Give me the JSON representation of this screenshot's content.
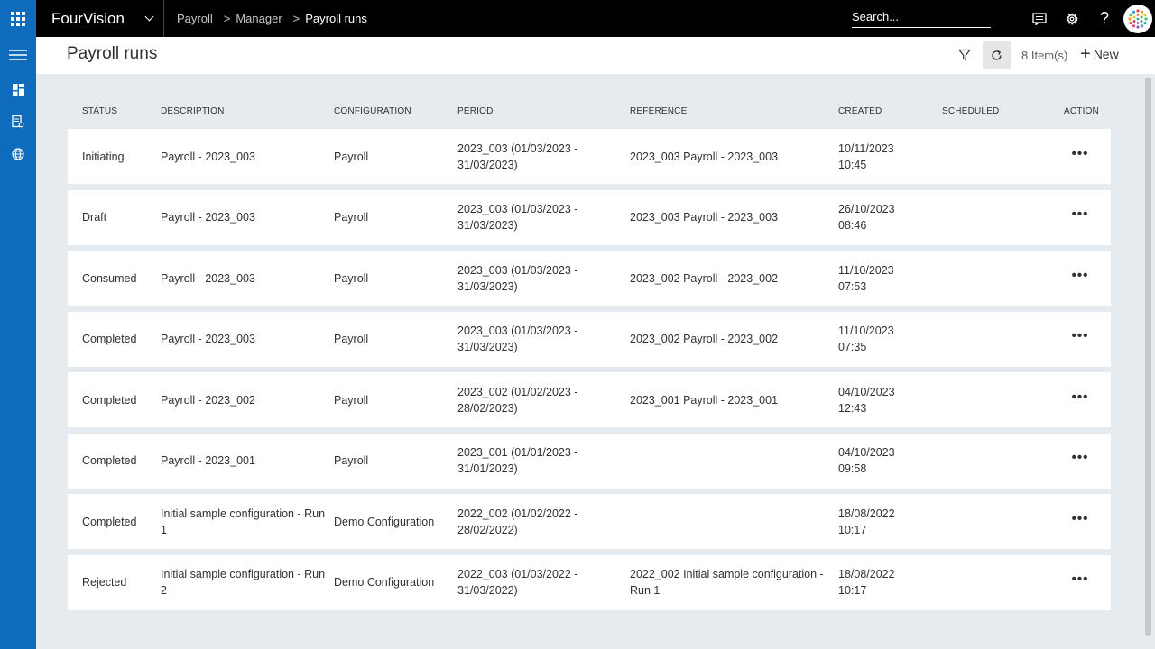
{
  "app": {
    "name": "FourVision",
    "breadcrumb": [
      "Payroll",
      "Manager",
      "Payroll runs"
    ],
    "search_placeholder": "Search..."
  },
  "page": {
    "title": "Payroll runs",
    "item_count": "8 Item(s)",
    "new_label": "New"
  },
  "icons": {
    "launcher": "waffle-icon",
    "chat": "chat-icon",
    "settings": "gear-icon",
    "help": "help-icon",
    "menu": "hamburger-icon",
    "filter": "filter-icon",
    "refresh": "refresh-icon"
  },
  "colors": {
    "accent": "#0f6cbd",
    "topbar": "#000000",
    "page_bg": "#e6ebf0"
  },
  "table": {
    "columns": [
      "STATUS",
      "DESCRIPTION",
      "CONFIGURATION",
      "PERIOD",
      "REFERENCE",
      "CREATED",
      "SCHEDULED",
      "ACTION"
    ],
    "rows": [
      {
        "status": "Initiating",
        "description": "Payroll - 2023_003",
        "configuration": "Payroll",
        "period": "2023_003 (01/03/2023 - 31/03/2023)",
        "reference": "2023_003 Payroll - 2023_003",
        "created_date": "10/11/2023",
        "created_time": "10:45",
        "scheduled": "",
        "action": "•••"
      },
      {
        "status": "Draft",
        "description": "Payroll - 2023_003",
        "configuration": "Payroll",
        "period": "2023_003 (01/03/2023 - 31/03/2023)",
        "reference": "2023_003 Payroll - 2023_003",
        "created_date": "26/10/2023",
        "created_time": "08:46",
        "scheduled": "",
        "action": "•••"
      },
      {
        "status": "Consumed",
        "description": "Payroll - 2023_003",
        "configuration": "Payroll",
        "period": "2023_003 (01/03/2023 - 31/03/2023)",
        "reference": "2023_002 Payroll - 2023_002",
        "created_date": "11/10/2023",
        "created_time": "07:53",
        "scheduled": "",
        "action": "•••"
      },
      {
        "status": "Completed",
        "description": "Payroll - 2023_003",
        "configuration": "Payroll",
        "period": "2023_003 (01/03/2023 - 31/03/2023)",
        "reference": "2023_002 Payroll - 2023_002",
        "created_date": "11/10/2023",
        "created_time": "07:35",
        "scheduled": "",
        "action": "•••"
      },
      {
        "status": "Completed",
        "description": "Payroll - 2023_002",
        "configuration": "Payroll",
        "period": "2023_002 (01/02/2023 - 28/02/2023)",
        "reference": "2023_001 Payroll - 2023_001",
        "created_date": "04/10/2023",
        "created_time": "12:43",
        "scheduled": "",
        "action": "•••"
      },
      {
        "status": "Completed",
        "description": "Payroll - 2023_001",
        "configuration": "Payroll",
        "period": "2023_001 (01/01/2023 - 31/01/2023)",
        "reference": "",
        "created_date": "04/10/2023",
        "created_time": "09:58",
        "scheduled": "",
        "action": "•••"
      },
      {
        "status": "Completed",
        "description": "Initial sample configuration - Run 1",
        "configuration": "Demo Configuration",
        "period": "2022_002 (01/02/2022 - 28/02/2022)",
        "reference": "",
        "created_date": "18/08/2022",
        "created_time": "10:17",
        "scheduled": "",
        "action": "•••"
      },
      {
        "status": "Rejected",
        "description": "Initial sample configuration - Run 2",
        "configuration": "Demo Configuration",
        "period": "2022_003 (01/03/2022 - 31/03/2022)",
        "reference": "2022_002 Initial sample configuration - Run 1",
        "created_date": "18/08/2022",
        "created_time": "10:17",
        "scheduled": "",
        "action": "•••"
      }
    ]
  }
}
